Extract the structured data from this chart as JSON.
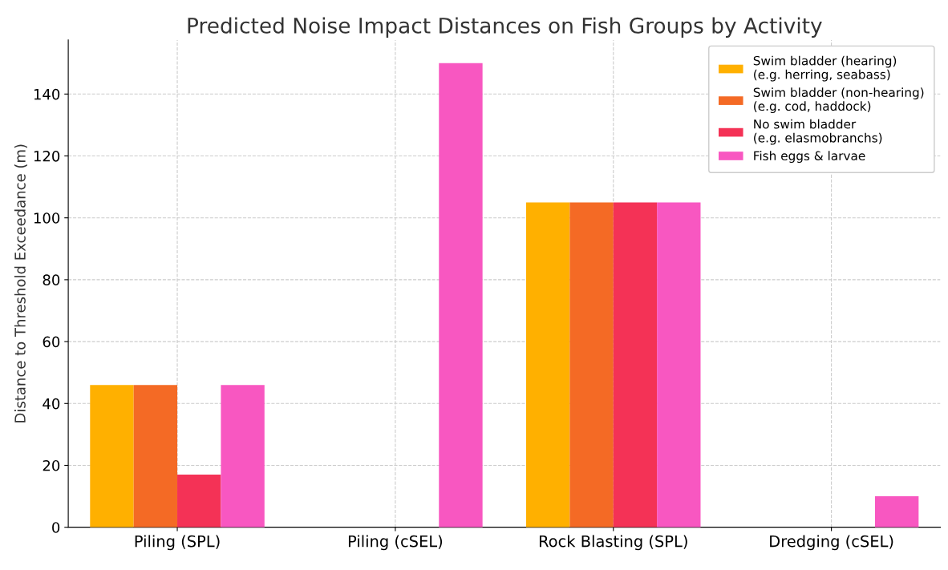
{
  "chart_data": {
    "type": "bar",
    "title": "Predicted Noise Impact Distances on Fish Groups by Activity",
    "ylabel": "Distance to Threshold Exceedance (m)",
    "categories": [
      "Piling (SPL)",
      "Piling (cSEL)",
      "Rock Blasting (SPL)",
      "Dredging (cSEL)"
    ],
    "series": [
      {
        "name": "Swim bladder (hearing)\n(e.g. herring, seabass)",
        "color": "#ffb000",
        "values": [
          46,
          0,
          105,
          0
        ]
      },
      {
        "name": "Swim bladder (non-hearing)\n(e.g. cod, haddock)",
        "color": "#f46a25",
        "values": [
          46,
          0,
          105,
          0
        ]
      },
      {
        "name": "No swim bladder\n(e.g. elasmobranchs)",
        "color": "#f43256",
        "values": [
          17,
          0,
          105,
          0
        ]
      },
      {
        "name": "Fish eggs & larvae",
        "color": "#f857c1",
        "values": [
          46,
          150,
          105,
          10
        ]
      }
    ],
    "ylim": [
      0,
      157.5
    ],
    "yticks": [
      0,
      20,
      40,
      60,
      80,
      100,
      120,
      140
    ],
    "grid": true,
    "legend": "top right"
  }
}
